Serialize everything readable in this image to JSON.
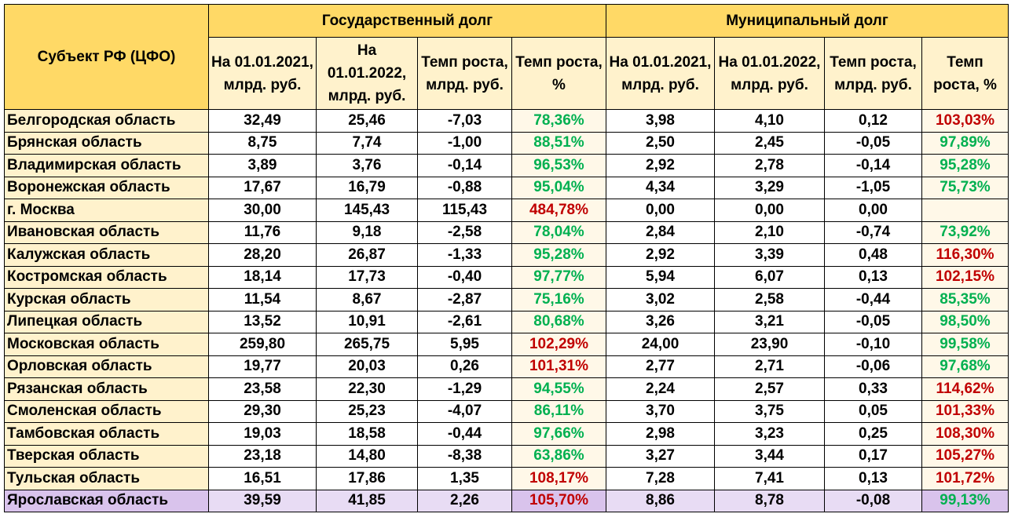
{
  "header": {
    "subject": "Субъект РФ (ЦФО)",
    "state_debt": "Государственный долг",
    "municipal_debt": "Муниципальный долг",
    "cols": [
      "На 01.01.2021, млрд. руб.",
      "На 01.01.2022, млрд. руб.",
      "Темп роста, млрд. руб.",
      "Темп роста, %"
    ]
  },
  "colors": {
    "green": "#00b050",
    "red": "#c00000",
    "header": "#ffd966",
    "highlight": "#e8dcf4"
  },
  "rows": [
    [
      "Белгородская область",
      "32,49",
      "25,46",
      "-7,03",
      "78,36%",
      "3,98",
      "4,10",
      "0,12",
      "103,03%"
    ],
    [
      "Брянская область",
      "8,75",
      "7,74",
      "-1,00",
      "88,51%",
      "2,50",
      "2,45",
      "-0,05",
      "97,89%"
    ],
    [
      "Владимирская область",
      "3,89",
      "3,76",
      "-0,14",
      "96,53%",
      "2,92",
      "2,78",
      "-0,14",
      "95,28%"
    ],
    [
      "Воронежская область",
      "17,67",
      "16,79",
      "-0,88",
      "95,04%",
      "4,34",
      "3,29",
      "-1,05",
      "75,73%"
    ],
    [
      "г. Москва",
      "30,00",
      "145,43",
      "115,43",
      "484,78%",
      "0,00",
      "0,00",
      "0,00",
      ""
    ],
    [
      "Ивановская область",
      "11,76",
      "9,18",
      "-2,58",
      "78,04%",
      "2,84",
      "2,10",
      "-0,74",
      "73,92%"
    ],
    [
      "Калужская область",
      "28,20",
      "26,87",
      "-1,33",
      "95,28%",
      "2,92",
      "3,39",
      "0,48",
      "116,30%"
    ],
    [
      "Костромская область",
      "18,14",
      "17,73",
      "-0,40",
      "97,77%",
      "5,94",
      "6,07",
      "0,13",
      "102,15%"
    ],
    [
      "Курская область",
      "11,54",
      "8,67",
      "-2,87",
      "75,16%",
      "3,02",
      "2,58",
      "-0,44",
      "85,35%"
    ],
    [
      "Липецкая область",
      "13,52",
      "10,91",
      "-2,61",
      "80,68%",
      "3,26",
      "3,21",
      "-0,05",
      "98,50%"
    ],
    [
      "Московская область",
      "259,80",
      "265,75",
      "5,95",
      "102,29%",
      "24,00",
      "23,90",
      "-0,10",
      "99,58%"
    ],
    [
      "Орловская область",
      "19,77",
      "20,03",
      "0,26",
      "101,31%",
      "2,77",
      "2,71",
      "-0,06",
      "97,68%"
    ],
    [
      "Рязанская область",
      "23,58",
      "22,30",
      "-1,29",
      "94,55%",
      "2,24",
      "2,57",
      "0,33",
      "114,62%"
    ],
    [
      "Смоленская область",
      "29,30",
      "25,23",
      "-4,07",
      "86,11%",
      "3,70",
      "3,75",
      "0,05",
      "101,33%"
    ],
    [
      "Тамбовская область",
      "19,03",
      "18,58",
      "-0,44",
      "97,66%",
      "2,98",
      "3,23",
      "0,25",
      "108,30%"
    ],
    [
      "Тверская область",
      "23,18",
      "14,80",
      "-8,38",
      "63,86%",
      "3,27",
      "3,44",
      "0,17",
      "105,27%"
    ],
    [
      "Тульская область",
      "16,51",
      "17,86",
      "1,35",
      "108,17%",
      "7,28",
      "7,41",
      "0,13",
      "101,72%"
    ],
    [
      "Ярославская область",
      "39,59",
      "41,85",
      "2,26",
      "105,70%",
      "8,86",
      "8,78",
      "-0,08",
      "99,13%"
    ]
  ]
}
